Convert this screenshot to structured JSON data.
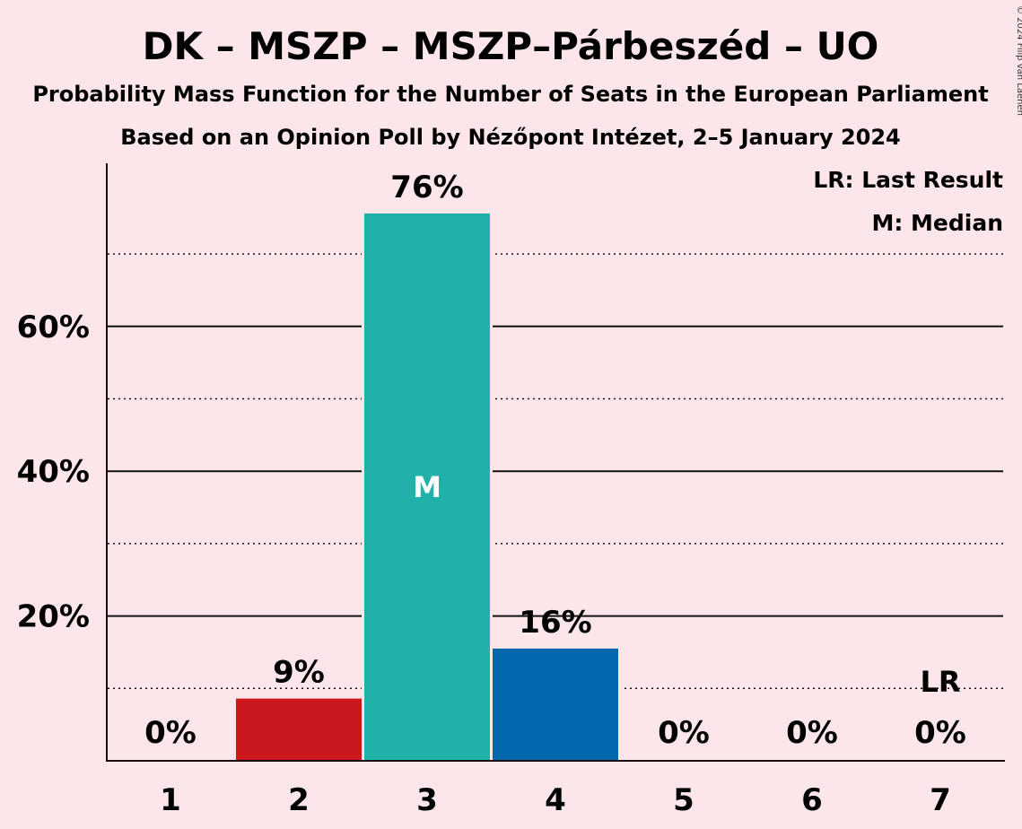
{
  "title": "DK – MSZP – MSZP–Párbeszéd – UO",
  "subtitle1": "Probability Mass Function for the Number of Seats in the European Parliament",
  "subtitle2": "Based on an Opinion Poll by Nézőpont Intézet, 2–5 January 2024",
  "copyright": "© 2024 Filip van Laenen",
  "legend": {
    "last_result": "LR: Last Result",
    "median": "M: Median"
  },
  "chart_data": {
    "type": "bar",
    "categories": [
      "1",
      "2",
      "3",
      "4",
      "5",
      "6",
      "7"
    ],
    "values": [
      0,
      8.6,
      75.6,
      15.5,
      0,
      0,
      0
    ],
    "value_labels": [
      "0%",
      "9%",
      "76%",
      "16%",
      "0%",
      "0%",
      "0%"
    ],
    "bar_colors": [
      "#ffffff",
      "#cc181d",
      "#20b1aa",
      "#0067ad",
      "#ffffff",
      "#ffffff",
      "#ffffff"
    ],
    "ylim": [
      0,
      82
    ],
    "yticks": [
      20,
      40,
      60
    ],
    "ytick_labels": [
      "20%",
      "40%",
      "60%"
    ],
    "minor_gridlines": [
      10,
      30,
      50,
      70
    ],
    "median_category": "3",
    "median_label": "M",
    "last_result_category": "7",
    "last_result_label": "LR",
    "legend_position": "top-right",
    "grid": true
  }
}
